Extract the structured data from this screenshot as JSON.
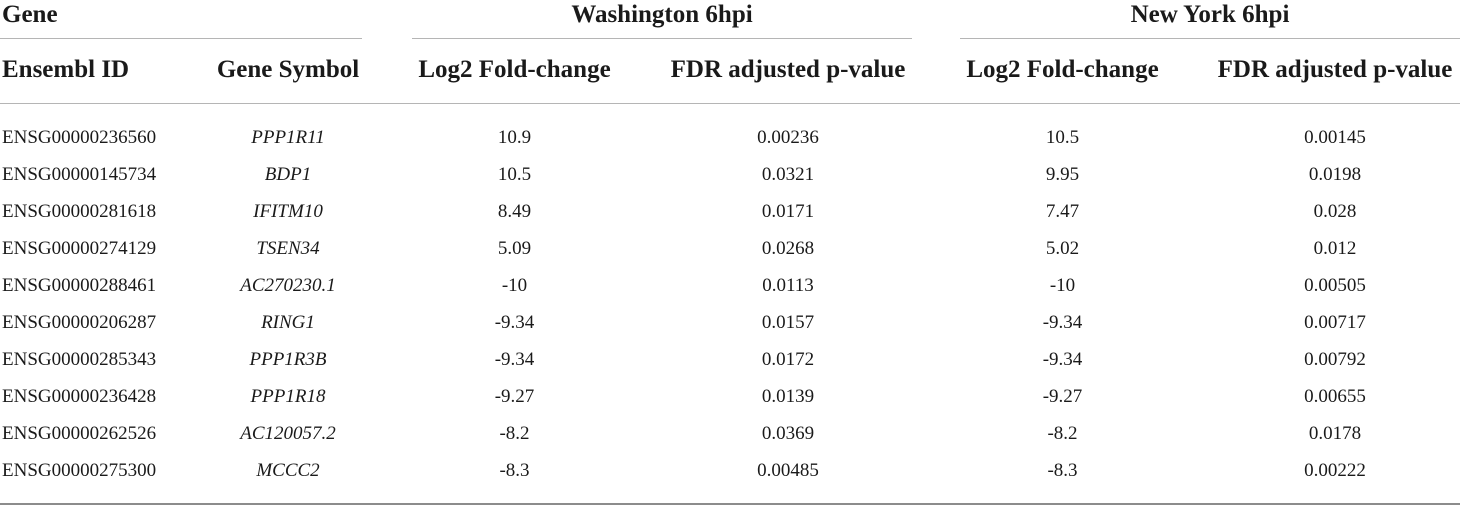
{
  "header": {
    "gene_group": "Gene",
    "washington_group": "Washington 6hpi",
    "newyork_group": "New York 6hpi",
    "col_ensembl": "Ensembl ID",
    "col_symbol": "Gene Symbol",
    "col_wa_log2": "Log2 Fold-change",
    "col_wa_fdr": "FDR adjusted p-value",
    "col_ny_log2": "Log2 Fold-change",
    "col_ny_fdr": "FDR adjusted p-value"
  },
  "rows": [
    {
      "ensembl": "ENSG00000236560",
      "symbol": "PPP1R11",
      "wa_log2": "10.9",
      "wa_fdr": "0.00236",
      "ny_log2": "10.5",
      "ny_fdr": "0.00145"
    },
    {
      "ensembl": "ENSG00000145734",
      "symbol": "BDP1",
      "wa_log2": "10.5",
      "wa_fdr": "0.0321",
      "ny_log2": "9.95",
      "ny_fdr": "0.0198"
    },
    {
      "ensembl": "ENSG00000281618",
      "symbol": "IFITM10",
      "wa_log2": "8.49",
      "wa_fdr": "0.0171",
      "ny_log2": "7.47",
      "ny_fdr": "0.028"
    },
    {
      "ensembl": "ENSG00000274129",
      "symbol": "TSEN34",
      "wa_log2": "5.09",
      "wa_fdr": "0.0268",
      "ny_log2": "5.02",
      "ny_fdr": "0.012"
    },
    {
      "ensembl": "ENSG00000288461",
      "symbol": "AC270230.1",
      "wa_log2": "-10",
      "wa_fdr": "0.0113",
      "ny_log2": "-10",
      "ny_fdr": "0.00505"
    },
    {
      "ensembl": "ENSG00000206287",
      "symbol": "RING1",
      "wa_log2": "-9.34",
      "wa_fdr": "0.0157",
      "ny_log2": "-9.34",
      "ny_fdr": "0.00717"
    },
    {
      "ensembl": "ENSG00000285343",
      "symbol": "PPP1R3B",
      "wa_log2": "-9.34",
      "wa_fdr": "0.0172",
      "ny_log2": "-9.34",
      "ny_fdr": "0.00792"
    },
    {
      "ensembl": "ENSG00000236428",
      "symbol": "PPP1R18",
      "wa_log2": "-9.27",
      "wa_fdr": "0.0139",
      "ny_log2": "-9.27",
      "ny_fdr": "0.00655"
    },
    {
      "ensembl": "ENSG00000262526",
      "symbol": "AC120057.2",
      "wa_log2": "-8.2",
      "wa_fdr": "0.0369",
      "ny_log2": "-8.2",
      "ny_fdr": "0.0178"
    },
    {
      "ensembl": "ENSG00000275300",
      "symbol": "MCCC2",
      "wa_log2": "-8.3",
      "wa_fdr": "0.00485",
      "ny_log2": "-8.3",
      "ny_fdr": "0.00222"
    }
  ]
}
